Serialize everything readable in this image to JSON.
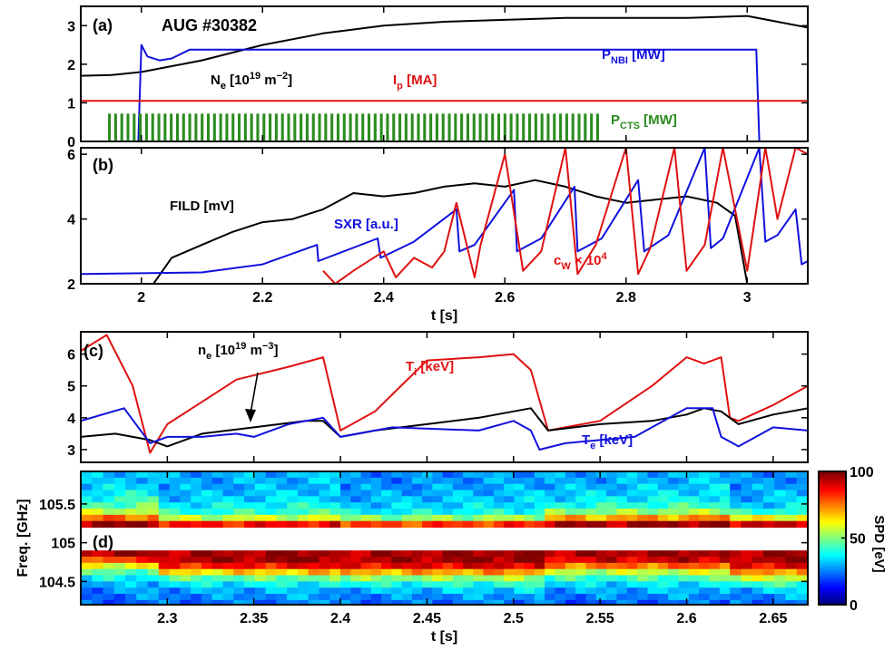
{
  "figure": {
    "shot_label": "AUG #30382",
    "colorbar": {
      "label": "SPD [eV]",
      "ticks": [
        "0",
        "50",
        "100"
      ],
      "range": [
        0,
        100
      ]
    }
  },
  "colors": {
    "black": "#000000",
    "blue": "#1010dd",
    "red": "#e01010",
    "green": "#2a8c1e"
  },
  "chart_data": [
    {
      "type": "line",
      "panel": "(a)",
      "xlim": [
        1.9,
        3.1
      ],
      "ylim": [
        0,
        3.5
      ],
      "yticks": [
        "0",
        "1",
        "2",
        "3"
      ],
      "grid": false,
      "series": [
        {
          "name": "N_e [10^19 m^-2]",
          "color": "#000000",
          "x": [
            1.9,
            1.95,
            2.0,
            2.1,
            2.2,
            2.3,
            2.4,
            2.5,
            2.6,
            2.7,
            2.8,
            2.9,
            3.0,
            3.05,
            3.1
          ],
          "y": [
            1.7,
            1.72,
            1.8,
            2.1,
            2.5,
            2.8,
            3.0,
            3.1,
            3.15,
            3.2,
            3.2,
            3.2,
            3.25,
            3.1,
            2.95
          ]
        },
        {
          "name": "P_NBI [MW]",
          "color": "#1010dd",
          "x": [
            1.9,
            1.995,
            1.998,
            2.0,
            2.01,
            2.03,
            2.05,
            2.08,
            2.1,
            2.5,
            2.7,
            2.75,
            2.8,
            3.0,
            3.015,
            3.02,
            3.1
          ],
          "y": [
            0,
            0,
            1.5,
            2.5,
            2.2,
            2.1,
            2.15,
            2.38,
            2.38,
            2.38,
            2.38,
            2.38,
            2.38,
            2.38,
            2.38,
            0,
            0
          ]
        },
        {
          "name": "I_p [MA]",
          "color": "#e01010",
          "x": [
            1.9,
            3.1
          ],
          "y": [
            1.05,
            1.05
          ]
        },
        {
          "name": "P_CTS [MW]",
          "color": "#2a8c1e",
          "pulses": {
            "start": 1.945,
            "end": 2.76,
            "period": 0.0102,
            "duty": 0.45,
            "height": 0.72
          }
        }
      ]
    },
    {
      "type": "line",
      "panel": "(b)",
      "xlabel": "t [s]",
      "xlim": [
        1.9,
        3.1
      ],
      "ylim": [
        2,
        6.2
      ],
      "xticks": [
        "2",
        "2.2",
        "2.4",
        "2.6",
        "2.8",
        "3"
      ],
      "yticks": [
        "2",
        "4",
        "6"
      ],
      "series": [
        {
          "name": "FILD [mV]",
          "color": "#000000",
          "x": [
            2.02,
            2.05,
            2.1,
            2.15,
            2.2,
            2.25,
            2.3,
            2.35,
            2.4,
            2.45,
            2.5,
            2.55,
            2.6,
            2.65,
            2.7,
            2.75,
            2.8,
            2.85,
            2.9,
            2.95,
            2.98,
            3.0
          ],
          "y": [
            2.0,
            2.8,
            3.2,
            3.6,
            3.9,
            4.0,
            4.3,
            4.8,
            4.7,
            4.8,
            5.0,
            5.1,
            5.0,
            5.2,
            5.0,
            4.7,
            4.5,
            4.6,
            4.7,
            4.5,
            4.1,
            2.0
          ]
        },
        {
          "name": "SXR [a.u.]",
          "color": "#1010dd",
          "x": [
            1.9,
            2.1,
            2.2,
            2.29,
            2.292,
            2.39,
            2.395,
            2.45,
            2.52,
            2.525,
            2.55,
            2.615,
            2.62,
            2.66,
            2.715,
            2.72,
            2.76,
            2.82,
            2.83,
            2.87,
            2.93,
            2.94,
            2.96,
            3.02,
            3.03,
            3.05,
            3.08,
            3.09,
            3.1
          ],
          "y": [
            2.3,
            2.35,
            2.6,
            3.2,
            2.7,
            3.4,
            2.8,
            3.3,
            4.3,
            3.0,
            3.2,
            4.9,
            3.0,
            3.4,
            5.0,
            3.0,
            3.4,
            5.2,
            3.0,
            3.5,
            6.2,
            3.1,
            3.4,
            6.2,
            3.3,
            3.5,
            4.3,
            2.6,
            2.7
          ]
        },
        {
          "name": "c_W x 10^4",
          "color": "#e01010",
          "x": [
            2.3,
            2.32,
            2.35,
            2.4,
            2.42,
            2.45,
            2.48,
            2.5,
            2.52,
            2.55,
            2.56,
            2.6,
            2.63,
            2.66,
            2.7,
            2.72,
            2.75,
            2.8,
            2.82,
            2.84,
            2.88,
            2.9,
            2.93,
            2.96,
            3.0,
            3.03,
            3.05,
            3.08,
            3.1
          ],
          "y": [
            2.4,
            2.0,
            2.4,
            3.0,
            2.2,
            2.8,
            2.5,
            3.0,
            4.5,
            2.2,
            3.2,
            6.0,
            2.4,
            3.0,
            6.2,
            2.3,
            3.2,
            6.2,
            2.3,
            3.1,
            6.2,
            2.4,
            3.2,
            6.2,
            2.4,
            6.2,
            4.0,
            6.2,
            6.0
          ]
        }
      ]
    },
    {
      "type": "line",
      "panel": "(c)",
      "xlim": [
        2.25,
        2.67
      ],
      "ylim": [
        2.6,
        6.7
      ],
      "yticks": [
        "3",
        "4",
        "5",
        "6"
      ],
      "series": [
        {
          "name": "T_i [keV]",
          "color": "#e01010",
          "x": [
            2.25,
            2.265,
            2.28,
            2.29,
            2.3,
            2.32,
            2.34,
            2.37,
            2.39,
            2.4,
            2.42,
            2.45,
            2.48,
            2.5,
            2.51,
            2.52,
            2.55,
            2.58,
            2.6,
            2.61,
            2.62,
            2.625,
            2.63,
            2.65,
            2.67
          ],
          "y": [
            6.1,
            6.6,
            5.0,
            2.9,
            3.8,
            4.5,
            5.2,
            5.6,
            5.9,
            3.6,
            4.2,
            5.8,
            5.9,
            6.0,
            5.5,
            3.6,
            3.9,
            5.0,
            5.9,
            5.7,
            5.9,
            4.0,
            3.9,
            4.4,
            5.0
          ]
        },
        {
          "name": "n_e [10^19 m^-3]",
          "color": "#000000",
          "x": [
            2.25,
            2.27,
            2.28,
            2.29,
            2.3,
            2.32,
            2.35,
            2.38,
            2.39,
            2.4,
            2.42,
            2.45,
            2.48,
            2.5,
            2.51,
            2.52,
            2.55,
            2.58,
            2.6,
            2.61,
            2.62,
            2.63,
            2.65,
            2.67
          ],
          "y": [
            3.4,
            3.5,
            3.4,
            3.3,
            3.1,
            3.5,
            3.7,
            3.9,
            3.9,
            3.4,
            3.6,
            3.8,
            4.0,
            4.2,
            4.3,
            3.6,
            3.8,
            3.9,
            4.1,
            4.3,
            4.2,
            3.8,
            4.1,
            4.3
          ]
        },
        {
          "name": "T_e [keV]",
          "color": "#1010dd",
          "x": [
            2.25,
            2.275,
            2.29,
            2.3,
            2.32,
            2.34,
            2.35,
            2.37,
            2.39,
            2.4,
            2.43,
            2.48,
            2.5,
            2.51,
            2.515,
            2.53,
            2.57,
            2.6,
            2.615,
            2.62,
            2.63,
            2.65,
            2.67
          ],
          "y": [
            3.9,
            4.3,
            3.2,
            3.4,
            3.4,
            3.5,
            3.4,
            3.8,
            4.0,
            3.4,
            3.7,
            3.6,
            3.9,
            3.6,
            3.0,
            3.2,
            3.4,
            4.3,
            4.3,
            3.4,
            3.1,
            3.7,
            3.6
          ]
        }
      ]
    },
    {
      "type": "heatmap",
      "panel": "(d)",
      "xlabel": "t [s]",
      "ylabel": "Freq. [GHz]",
      "xlim": [
        2.25,
        2.67
      ],
      "ylim": [
        104.2,
        105.92
      ],
      "xticks": [
        "2.3",
        "2.35",
        "2.4",
        "2.45",
        "2.5",
        "2.55",
        "2.6",
        "2.65"
      ],
      "yticks": [
        "104.5",
        "105",
        "105.5"
      ],
      "blank_band_ghz": [
        104.92,
        105.12
      ],
      "freq_bins": [
        105.88,
        105.8,
        105.72,
        105.64,
        105.56,
        105.48,
        105.4,
        105.32,
        105.24,
        104.86,
        104.78,
        104.7,
        104.62,
        104.54,
        104.46,
        104.38,
        104.3,
        104.22
      ],
      "level_sections": [
        {
          "x_start": 2.25,
          "x_end": 2.295,
          "spd": [
            30,
            30,
            32,
            35,
            40,
            45,
            55,
            75,
            95,
            95,
            80,
            60,
            45,
            35,
            28,
            25,
            22,
            20
          ]
        },
        {
          "x_start": 2.295,
          "x_end": 2.4,
          "spd": [
            28,
            28,
            28,
            30,
            32,
            36,
            40,
            55,
            85,
            95,
            95,
            85,
            65,
            45,
            35,
            28,
            25,
            22
          ]
        },
        {
          "x_start": 2.4,
          "x_end": 2.518,
          "spd": [
            25,
            25,
            26,
            28,
            30,
            32,
            36,
            50,
            80,
            95,
            95,
            88,
            70,
            50,
            38,
            30,
            25,
            22
          ]
        },
        {
          "x_start": 2.518,
          "x_end": 2.625,
          "spd": [
            28,
            28,
            30,
            32,
            35,
            40,
            50,
            70,
            95,
            95,
            90,
            75,
            55,
            42,
            33,
            28,
            24,
            20
          ]
        },
        {
          "x_start": 2.625,
          "x_end": 2.67,
          "spd": [
            25,
            25,
            26,
            28,
            30,
            32,
            40,
            60,
            90,
            95,
            95,
            88,
            72,
            55,
            40,
            30,
            25,
            22
          ]
        }
      ]
    }
  ],
  "panel_labels": {
    "a": "(a)",
    "b": "(b)",
    "c": "(c)",
    "d": "(d)"
  },
  "annotations": {
    "ne_a": {
      "base": "N",
      "sub": "e",
      "rest": " [10",
      "sup": "19",
      "unit": " m",
      "sup2": "−2",
      "close": "]"
    },
    "pnbi": {
      "base": "P",
      "sub": "NBI",
      "rest": " [MW]"
    },
    "ip": {
      "base": "I",
      "sub": "p",
      "rest": " [MA]"
    },
    "pcts": {
      "base": "P",
      "sub": "CTS",
      "rest": " [MW]"
    },
    "fild": "FILD [mV]",
    "sxr": "SXR [a.u.]",
    "cw": {
      "base": "c",
      "sub": "W",
      "rest": " × 10",
      "sup": "4"
    },
    "ne_c": {
      "base": "n",
      "sub": "e",
      "rest": " [10",
      "sup": "19",
      "unit": " m",
      "sup2": "−3",
      "close": "]"
    },
    "ti": {
      "base": "T",
      "sub": "i",
      "rest": " [keV]"
    },
    "te": {
      "base": "T",
      "sub": "e",
      "rest": " [keV]"
    }
  }
}
